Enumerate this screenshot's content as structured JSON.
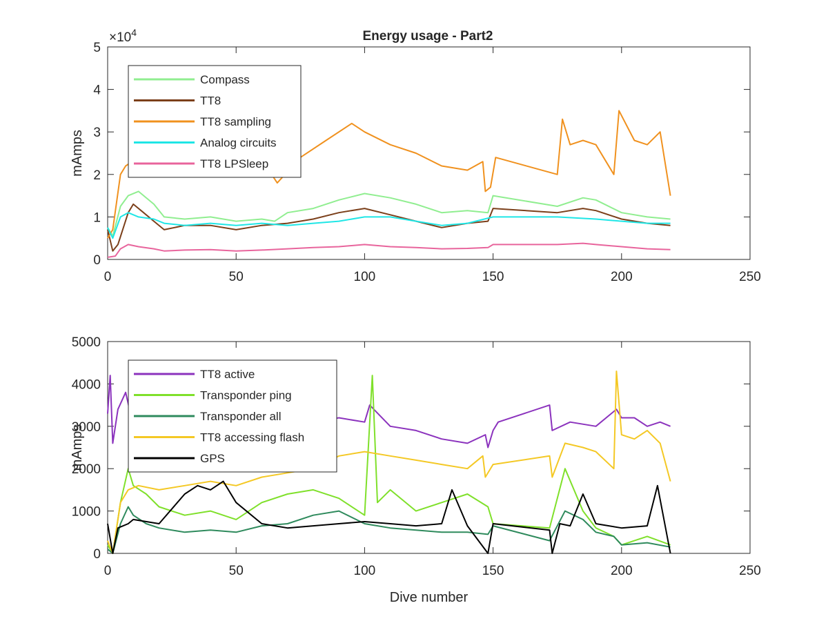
{
  "figure": {
    "title": "Energy usage - Part2"
  },
  "chart_data": [
    {
      "type": "line",
      "title": "Energy usage - Part2",
      "xlabel": "",
      "ylabel": "mAmps",
      "xlim": [
        0,
        250
      ],
      "ylim": [
        0,
        50000
      ],
      "xticks": [
        0,
        50,
        100,
        150,
        200,
        250
      ],
      "yticks": [
        0,
        10000,
        20000,
        30000,
        40000,
        50000
      ],
      "yticklabels": [
        "0",
        "1",
        "2",
        "3",
        "4",
        "5"
      ],
      "exponent_label": "×10",
      "exponent_power": "4",
      "grid": false,
      "legend_position": "top-left",
      "series": [
        {
          "name": "Compass",
          "color": "#90ee90",
          "x": [
            0,
            2,
            5,
            8,
            12,
            18,
            22,
            30,
            40,
            50,
            60,
            65,
            70,
            80,
            90,
            100,
            110,
            120,
            130,
            140,
            148,
            150,
            175,
            185,
            190,
            200,
            210,
            219
          ],
          "y": [
            7500,
            5500,
            12500,
            15000,
            16000,
            13000,
            10000,
            9500,
            10000,
            9000,
            9500,
            9000,
            11000,
            12000,
            14000,
            15500,
            14500,
            13000,
            11000,
            11500,
            11000,
            15000,
            12500,
            14500,
            14000,
            11000,
            10000,
            9500
          ]
        },
        {
          "name": "TT8",
          "color": "#7b3f1a",
          "x": [
            0,
            2,
            4,
            8,
            10,
            14,
            18,
            22,
            30,
            40,
            50,
            60,
            70,
            80,
            90,
            100,
            110,
            120,
            130,
            140,
            148,
            150,
            175,
            185,
            190,
            200,
            210,
            219
          ],
          "y": [
            7000,
            2000,
            3500,
            11000,
            13000,
            11000,
            9000,
            7000,
            8000,
            8000,
            7000,
            8000,
            8500,
            9500,
            11000,
            12000,
            10500,
            9000,
            7500,
            8500,
            9000,
            12000,
            11000,
            12000,
            11500,
            9500,
            8500,
            8000
          ]
        },
        {
          "name": "TT8 sampling",
          "color": "#f0911e",
          "x": [
            0,
            2,
            5,
            7,
            12,
            20,
            30,
            40,
            50,
            60,
            66,
            75,
            85,
            95,
            100,
            110,
            120,
            130,
            140,
            146,
            147,
            149,
            151,
            175,
            177,
            180,
            185,
            190,
            197,
            199,
            205,
            210,
            215,
            219
          ],
          "y": [
            5000,
            7000,
            20000,
            22000,
            24000,
            22000,
            24000,
            23000,
            23000,
            23500,
            18000,
            24000,
            28000,
            32000,
            30000,
            27000,
            25000,
            22000,
            21000,
            23000,
            16000,
            17000,
            24000,
            20000,
            33000,
            27000,
            28000,
            27000,
            20000,
            35000,
            28000,
            27000,
            30000,
            15000
          ]
        },
        {
          "name": "Analog circuits",
          "color": "#1fe6e6",
          "x": [
            0,
            2,
            5,
            8,
            12,
            18,
            22,
            30,
            40,
            50,
            60,
            70,
            80,
            90,
            100,
            110,
            120,
            130,
            140,
            150,
            175,
            190,
            200,
            210,
            219
          ],
          "y": [
            7500,
            5000,
            10000,
            11000,
            10000,
            9500,
            8500,
            8000,
            8500,
            8000,
            8500,
            8000,
            8500,
            9000,
            10000,
            10000,
            9000,
            8000,
            8500,
            10000,
            10000,
            9500,
            9000,
            8500,
            8500
          ]
        },
        {
          "name": "TT8 LPSleep",
          "color": "#e8649c",
          "x": [
            0,
            3,
            5,
            8,
            12,
            18,
            22,
            30,
            40,
            50,
            60,
            70,
            80,
            90,
            100,
            110,
            120,
            130,
            140,
            148,
            150,
            175,
            185,
            190,
            200,
            210,
            219
          ],
          "y": [
            500,
            800,
            2500,
            3500,
            3000,
            2500,
            2000,
            2200,
            2300,
            2000,
            2200,
            2500,
            2800,
            3000,
            3500,
            3000,
            2800,
            2500,
            2600,
            2800,
            3500,
            3500,
            3800,
            3500,
            3000,
            2500,
            2300
          ]
        }
      ]
    },
    {
      "type": "line",
      "title": "",
      "xlabel": "Dive number",
      "ylabel": "mAmps",
      "xlim": [
        0,
        250
      ],
      "ylim": [
        0,
        5000
      ],
      "xticks": [
        0,
        50,
        100,
        150,
        200,
        250
      ],
      "yticks": [
        0,
        1000,
        2000,
        3000,
        4000,
        5000
      ],
      "yticklabels": [
        "0",
        "1000",
        "2000",
        "3000",
        "4000",
        "5000"
      ],
      "grid": false,
      "legend_position": "top-left",
      "series": [
        {
          "name": "TT8 active",
          "color": "#8b32bd",
          "x": [
            0,
            1,
            2,
            4,
            7,
            10,
            14,
            20,
            30,
            40,
            50,
            60,
            70,
            80,
            90,
            100,
            102,
            110,
            120,
            130,
            140,
            147,
            148,
            150,
            152,
            172,
            173,
            180,
            190,
            198,
            200,
            205,
            210,
            215,
            219
          ],
          "y": [
            3300,
            4200,
            2600,
            3400,
            3800,
            3000,
            3300,
            2900,
            3100,
            3000,
            3200,
            3100,
            3000,
            3100,
            3200,
            3100,
            3500,
            3000,
            2900,
            2700,
            2600,
            2800,
            2500,
            2900,
            3100,
            3500,
            2900,
            3100,
            3000,
            3400,
            3200,
            3200,
            3000,
            3100,
            3000
          ]
        },
        {
          "name": "Transponder ping",
          "color": "#7fe02a",
          "x": [
            0,
            2,
            5,
            8,
            10,
            15,
            20,
            30,
            40,
            50,
            60,
            70,
            80,
            90,
            100,
            103,
            105,
            110,
            120,
            130,
            140,
            148,
            150,
            172,
            178,
            185,
            190,
            197,
            200,
            205,
            210,
            219
          ],
          "y": [
            200,
            0,
            1200,
            2000,
            1600,
            1400,
            1100,
            900,
            1000,
            800,
            1200,
            1400,
            1500,
            1300,
            900,
            4200,
            1200,
            1500,
            1000,
            1200,
            1400,
            1100,
            700,
            600,
            2000,
            1000,
            600,
            400,
            200,
            300,
            400,
            200
          ]
        },
        {
          "name": "Transponder all",
          "color": "#2e8a5c",
          "x": [
            0,
            2,
            5,
            8,
            10,
            15,
            20,
            30,
            40,
            50,
            60,
            70,
            80,
            90,
            100,
            110,
            120,
            130,
            140,
            148,
            150,
            172,
            178,
            185,
            190,
            197,
            200,
            210,
            219
          ],
          "y": [
            100,
            0,
            700,
            1100,
            900,
            700,
            600,
            500,
            550,
            500,
            650,
            700,
            900,
            1000,
            700,
            600,
            550,
            500,
            500,
            450,
            650,
            300,
            1000,
            800,
            500,
            400,
            200,
            250,
            150
          ]
        },
        {
          "name": "TT8 accessing flash",
          "color": "#f4c824",
          "x": [
            0,
            2,
            5,
            8,
            12,
            20,
            30,
            40,
            50,
            60,
            70,
            80,
            90,
            100,
            110,
            120,
            130,
            140,
            146,
            147,
            150,
            172,
            173,
            178,
            185,
            190,
            197,
            198,
            200,
            205,
            210,
            215,
            219
          ],
          "y": [
            300,
            0,
            1200,
            1500,
            1600,
            1500,
            1600,
            1700,
            1600,
            1800,
            1900,
            2000,
            2300,
            2400,
            2300,
            2200,
            2100,
            2000,
            2300,
            1800,
            2100,
            2300,
            1800,
            2600,
            2500,
            2400,
            2000,
            4300,
            2800,
            2700,
            2900,
            2600,
            1700
          ]
        },
        {
          "name": "GPS",
          "color": "#000000",
          "x": [
            0,
            2,
            4,
            8,
            10,
            20,
            30,
            35,
            40,
            45,
            50,
            60,
            70,
            80,
            90,
            100,
            110,
            120,
            130,
            134,
            140,
            148,
            150,
            172,
            173,
            176,
            180,
            185,
            190,
            200,
            210,
            214,
            219
          ],
          "y": [
            700,
            0,
            600,
            700,
            800,
            700,
            1400,
            1600,
            1500,
            1700,
            1200,
            700,
            600,
            650,
            700,
            750,
            700,
            650,
            700,
            1500,
            650,
            0,
            700,
            550,
            0,
            700,
            650,
            1400,
            700,
            600,
            650,
            1600,
            0
          ]
        }
      ]
    }
  ]
}
